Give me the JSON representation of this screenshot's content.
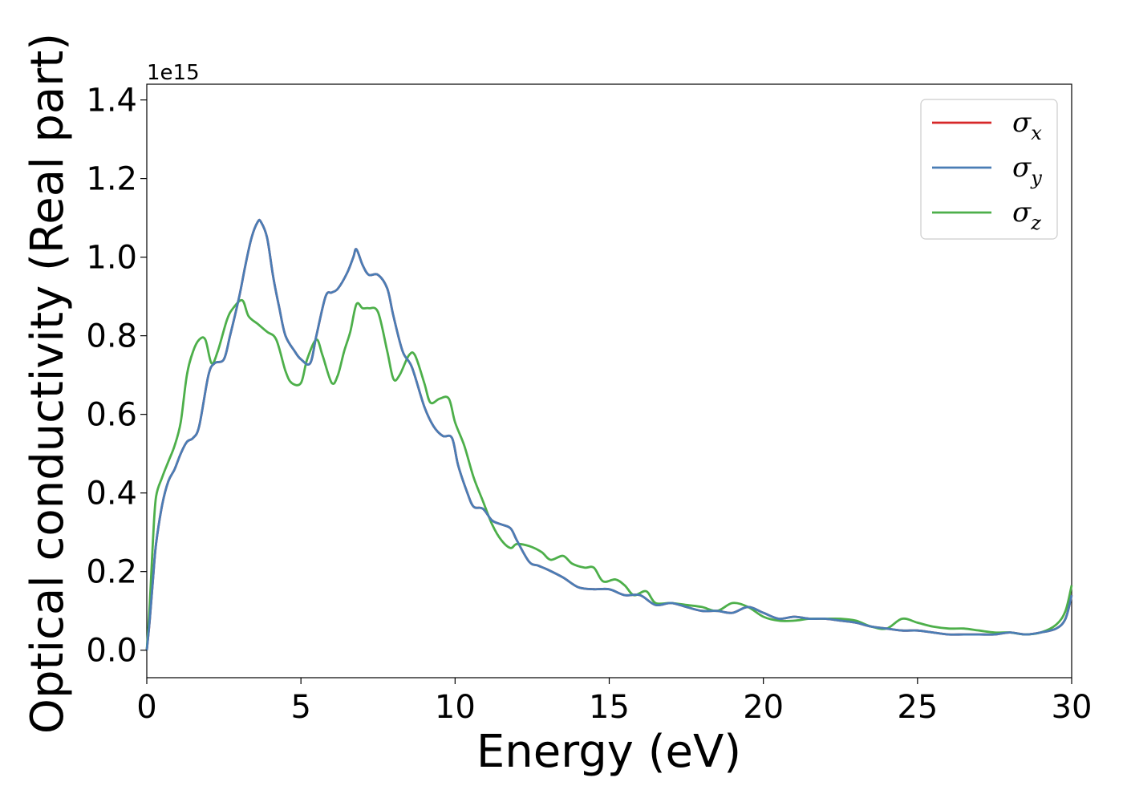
{
  "chart_data": {
    "type": "line",
    "xlabel": "Energy (eV)",
    "ylabel": "Optical conductivity (Real part)",
    "y_offset_label": "1e15",
    "xlim": [
      0,
      30
    ],
    "ylim": [
      -0.07,
      1.44
    ],
    "xticks": [
      0,
      5,
      10,
      15,
      20,
      25,
      30
    ],
    "xtick_labels": [
      "0",
      "5",
      "10",
      "15",
      "20",
      "25",
      "30"
    ],
    "yticks": [
      0.0,
      0.2,
      0.4,
      0.6,
      0.8,
      1.0,
      1.2,
      1.4
    ],
    "ytick_labels": [
      "0.0",
      "0.2",
      "0.4",
      "0.6",
      "0.8",
      "1.0",
      "1.2",
      "1.4"
    ],
    "grid": false,
    "legend_position": "top-right",
    "series": [
      {
        "name": "σx",
        "symbol": "σ",
        "subscript": "x",
        "color": "#d62728",
        "x": [
          0,
          0.1,
          0.2,
          0.3,
          0.5,
          0.7,
          0.9,
          1.1,
          1.3,
          1.5,
          1.7,
          2.0,
          2.2,
          2.5,
          2.7,
          3.0,
          3.2,
          3.4,
          3.6,
          3.7,
          3.9,
          4.1,
          4.3,
          4.5,
          4.8,
          5.0,
          5.3,
          5.5,
          5.8,
          6.0,
          6.2,
          6.5,
          6.7,
          6.8,
          7.0,
          7.2,
          7.5,
          7.8,
          8.0,
          8.3,
          8.6,
          9.0,
          9.3,
          9.6,
          9.9,
          10.1,
          10.4,
          10.6,
          10.9,
          11.2,
          11.5,
          11.8,
          12.0,
          12.4,
          12.7,
          13.0,
          13.5,
          14.0,
          14.5,
          15.0,
          15.5,
          16.0,
          16.5,
          17.0,
          17.5,
          18.0,
          18.5,
          19.0,
          19.5,
          20.0,
          20.5,
          21.0,
          21.5,
          22.0,
          22.5,
          23.0,
          23.5,
          24.0,
          24.5,
          25.0,
          25.5,
          26.0,
          26.5,
          27.0,
          27.5,
          28.0,
          28.5,
          29.0,
          29.5,
          29.8,
          30.0
        ],
        "y": [
          0.0,
          0.08,
          0.18,
          0.27,
          0.37,
          0.43,
          0.46,
          0.5,
          0.53,
          0.54,
          0.57,
          0.7,
          0.73,
          0.74,
          0.8,
          0.9,
          0.98,
          1.05,
          1.09,
          1.09,
          1.05,
          0.95,
          0.87,
          0.8,
          0.76,
          0.74,
          0.73,
          0.8,
          0.9,
          0.91,
          0.92,
          0.96,
          1.0,
          1.02,
          0.98,
          0.955,
          0.955,
          0.92,
          0.85,
          0.76,
          0.72,
          0.62,
          0.57,
          0.545,
          0.54,
          0.47,
          0.4,
          0.365,
          0.36,
          0.33,
          0.32,
          0.31,
          0.28,
          0.225,
          0.215,
          0.205,
          0.185,
          0.16,
          0.155,
          0.155,
          0.14,
          0.14,
          0.115,
          0.12,
          0.11,
          0.1,
          0.1,
          0.095,
          0.11,
          0.095,
          0.08,
          0.085,
          0.08,
          0.08,
          0.075,
          0.07,
          0.06,
          0.055,
          0.05,
          0.05,
          0.045,
          0.04,
          0.04,
          0.04,
          0.04,
          0.045,
          0.04,
          0.045,
          0.055,
          0.08,
          0.14
        ]
      },
      {
        "name": "σy",
        "symbol": "σ",
        "subscript": "y",
        "color": "#4a7db5",
        "x": [
          0,
          0.1,
          0.2,
          0.3,
          0.5,
          0.7,
          0.9,
          1.1,
          1.3,
          1.5,
          1.7,
          2.0,
          2.2,
          2.5,
          2.7,
          3.0,
          3.2,
          3.4,
          3.6,
          3.7,
          3.9,
          4.1,
          4.3,
          4.5,
          4.8,
          5.0,
          5.3,
          5.5,
          5.8,
          6.0,
          6.2,
          6.5,
          6.7,
          6.8,
          7.0,
          7.2,
          7.5,
          7.8,
          8.0,
          8.3,
          8.6,
          9.0,
          9.3,
          9.6,
          9.9,
          10.1,
          10.4,
          10.6,
          10.9,
          11.2,
          11.5,
          11.8,
          12.0,
          12.4,
          12.7,
          13.0,
          13.5,
          14.0,
          14.5,
          15.0,
          15.5,
          16.0,
          16.5,
          17.0,
          17.5,
          18.0,
          18.5,
          19.0,
          19.5,
          20.0,
          20.5,
          21.0,
          21.5,
          22.0,
          22.5,
          23.0,
          23.5,
          24.0,
          24.5,
          25.0,
          25.5,
          26.0,
          26.5,
          27.0,
          27.5,
          28.0,
          28.5,
          29.0,
          29.5,
          29.8,
          30.0
        ],
        "y": [
          0.0,
          0.08,
          0.18,
          0.27,
          0.37,
          0.43,
          0.46,
          0.5,
          0.53,
          0.54,
          0.57,
          0.7,
          0.73,
          0.74,
          0.8,
          0.9,
          0.98,
          1.05,
          1.09,
          1.09,
          1.05,
          0.95,
          0.87,
          0.8,
          0.76,
          0.74,
          0.73,
          0.8,
          0.9,
          0.91,
          0.92,
          0.96,
          1.0,
          1.02,
          0.98,
          0.955,
          0.955,
          0.92,
          0.85,
          0.76,
          0.72,
          0.62,
          0.57,
          0.545,
          0.54,
          0.47,
          0.4,
          0.365,
          0.36,
          0.33,
          0.32,
          0.31,
          0.28,
          0.225,
          0.215,
          0.205,
          0.185,
          0.16,
          0.155,
          0.155,
          0.14,
          0.14,
          0.115,
          0.12,
          0.11,
          0.1,
          0.1,
          0.095,
          0.11,
          0.095,
          0.08,
          0.085,
          0.08,
          0.08,
          0.075,
          0.07,
          0.06,
          0.055,
          0.05,
          0.05,
          0.045,
          0.04,
          0.04,
          0.04,
          0.04,
          0.045,
          0.04,
          0.045,
          0.055,
          0.08,
          0.14
        ]
      },
      {
        "name": "σz",
        "symbol": "σ",
        "subscript": "z",
        "color": "#4daf4a",
        "x": [
          0,
          0.1,
          0.2,
          0.3,
          0.5,
          0.7,
          0.9,
          1.1,
          1.3,
          1.5,
          1.7,
          1.9,
          2.1,
          2.3,
          2.6,
          2.8,
          3.1,
          3.3,
          3.6,
          3.9,
          4.2,
          4.5,
          4.7,
          5.0,
          5.2,
          5.5,
          5.7,
          6.0,
          6.2,
          6.4,
          6.6,
          6.8,
          7.0,
          7.2,
          7.5,
          7.8,
          8.0,
          8.2,
          8.5,
          8.7,
          9.0,
          9.2,
          9.5,
          9.8,
          10.0,
          10.3,
          10.6,
          10.9,
          11.2,
          11.5,
          11.8,
          12.0,
          12.4,
          12.8,
          13.1,
          13.5,
          13.8,
          14.2,
          14.5,
          14.8,
          15.2,
          15.5,
          15.8,
          16.2,
          16.5,
          17.0,
          17.5,
          18.0,
          18.5,
          19.0,
          19.5,
          20.0,
          20.5,
          21.0,
          21.5,
          22.0,
          22.5,
          23.0,
          23.5,
          24.0,
          24.5,
          25.0,
          25.5,
          26.0,
          26.5,
          27.0,
          27.5,
          28.0,
          28.5,
          29.0,
          29.5,
          29.8,
          30.0
        ],
        "y": [
          0.0,
          0.12,
          0.28,
          0.39,
          0.44,
          0.48,
          0.52,
          0.58,
          0.7,
          0.76,
          0.79,
          0.79,
          0.73,
          0.76,
          0.84,
          0.87,
          0.89,
          0.85,
          0.83,
          0.81,
          0.79,
          0.71,
          0.68,
          0.68,
          0.74,
          0.79,
          0.75,
          0.68,
          0.7,
          0.76,
          0.81,
          0.88,
          0.87,
          0.87,
          0.86,
          0.76,
          0.69,
          0.7,
          0.75,
          0.75,
          0.68,
          0.63,
          0.64,
          0.64,
          0.58,
          0.52,
          0.44,
          0.38,
          0.32,
          0.28,
          0.26,
          0.27,
          0.265,
          0.25,
          0.23,
          0.24,
          0.22,
          0.21,
          0.21,
          0.175,
          0.18,
          0.165,
          0.14,
          0.15,
          0.12,
          0.12,
          0.115,
          0.11,
          0.1,
          0.12,
          0.11,
          0.085,
          0.075,
          0.075,
          0.08,
          0.08,
          0.08,
          0.075,
          0.06,
          0.055,
          0.08,
          0.07,
          0.06,
          0.055,
          0.055,
          0.05,
          0.045,
          0.045,
          0.04,
          0.045,
          0.065,
          0.1,
          0.165
        ]
      }
    ]
  }
}
